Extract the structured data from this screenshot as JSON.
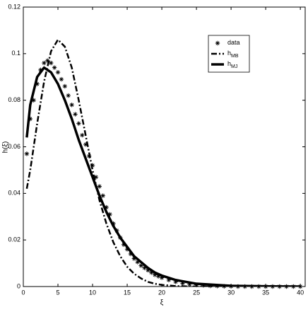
{
  "chart_data": {
    "type": "line",
    "x_label": "ξ",
    "y_label": "h(ξ)",
    "xlim": [
      0,
      40.7
    ],
    "ylim": [
      0,
      0.12
    ],
    "xticks": [
      0,
      5,
      10,
      15,
      20,
      25,
      30,
      35,
      40
    ],
    "yticks": [
      0,
      0.02,
      0.04,
      0.06,
      0.08,
      0.1,
      0.12
    ],
    "legend": "northeast",
    "series": [
      {
        "name": "data",
        "style": "markers",
        "color": "#000000",
        "x": [
          0.5,
          1,
          1.5,
          2,
          2.5,
          3,
          3.5,
          4,
          4.5,
          5,
          5.5,
          6,
          6.5,
          7,
          7.5,
          8,
          8.5,
          9,
          9.5,
          10,
          10.5,
          11,
          11.5,
          12,
          12.5,
          13,
          13.5,
          14,
          14.5,
          15,
          15.5,
          16,
          16.5,
          17,
          17.5,
          18,
          18.5,
          19,
          19.5,
          20,
          21,
          22,
          23,
          24,
          25,
          26,
          27,
          28,
          29,
          30,
          31,
          32,
          33,
          34,
          35,
          36,
          37,
          38,
          39,
          40
        ],
        "values": [
          0.057,
          0.072,
          0.08,
          0.087,
          0.093,
          0.096,
          0.097,
          0.096,
          0.094,
          0.092,
          0.089,
          0.086,
          0.082,
          0.078,
          0.074,
          0.07,
          0.065,
          0.061,
          0.056,
          0.052,
          0.047,
          0.043,
          0.039,
          0.034,
          0.031,
          0.027,
          0.024,
          0.021,
          0.018,
          0.016,
          0.014,
          0.012,
          0.0105,
          0.009,
          0.008,
          0.007,
          0.006,
          0.005,
          0.0044,
          0.0038,
          0.0028,
          0.002,
          0.0014,
          0.001,
          0.0007,
          0.0005,
          0.0003,
          0.0002,
          0.0001,
          0.0001,
          0,
          0,
          0,
          0,
          0,
          0,
          0,
          0,
          0,
          0
        ]
      },
      {
        "name": "h",
        "subscript": "MB",
        "style": "dashdot",
        "color": "#000000",
        "x": [
          0.5,
          1,
          2,
          3,
          4,
          5,
          6,
          7,
          8,
          9,
          10,
          11,
          12,
          13,
          14,
          15,
          16,
          17,
          18,
          19,
          20,
          22,
          25,
          30,
          35,
          40
        ],
        "values": [
          0.042,
          0.05,
          0.07,
          0.088,
          0.101,
          0.106,
          0.103,
          0.094,
          0.08,
          0.065,
          0.05,
          0.037,
          0.027,
          0.019,
          0.013,
          0.0085,
          0.0055,
          0.0035,
          0.002,
          0.0012,
          0.0007,
          0.0002,
          0,
          0,
          0,
          0
        ]
      },
      {
        "name": "h",
        "subscript": "MJ",
        "style": "solid",
        "color": "#000000",
        "x": [
          0.5,
          1,
          2,
          3,
          4,
          5,
          6,
          7,
          8,
          9,
          10,
          11,
          12,
          13,
          14,
          15,
          16,
          17,
          18,
          19,
          20,
          22,
          25,
          30,
          35,
          40
        ],
        "values": [
          0.064,
          0.078,
          0.09,
          0.094,
          0.092,
          0.087,
          0.08,
          0.072,
          0.063,
          0.055,
          0.047,
          0.039,
          0.032,
          0.026,
          0.021,
          0.017,
          0.013,
          0.0105,
          0.008,
          0.006,
          0.0047,
          0.0028,
          0.0012,
          0.0003,
          0.0001,
          0
        ]
      }
    ]
  }
}
